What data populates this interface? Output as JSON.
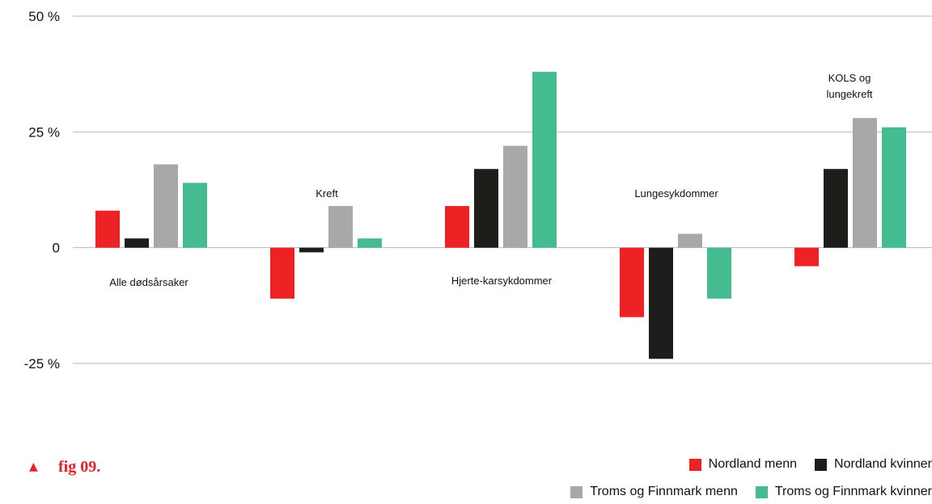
{
  "colors": {
    "nordland_menn": "#ee2224",
    "nordland_kvinner": "#1d1d1b",
    "tf_menn": "#a7a8aa",
    "tf_kvinner": "#45bc8f",
    "grid": "#b9b9b9",
    "accent": "#e5222b"
  },
  "caption": {
    "marker": "▲",
    "text": "fig 09."
  },
  "legend": {
    "row1": [
      {
        "label": "Nordland menn",
        "color_key": "nordland_menn"
      },
      {
        "label": "Nordland kvinner",
        "color_key": "nordland_kvinner"
      }
    ],
    "row2": [
      {
        "label": "Troms og Finnmark menn",
        "color_key": "tf_menn"
      },
      {
        "label": "Troms og Finnmark kvinner",
        "color_key": "tf_kvinner"
      }
    ]
  },
  "chart_data": {
    "type": "bar",
    "title": "",
    "xlabel": "",
    "ylabel": "",
    "ylim": [
      -25,
      50
    ],
    "yticks": [
      {
        "value": 50,
        "label": "50 %"
      },
      {
        "value": 25,
        "label": "25 %"
      },
      {
        "value": 0,
        "label": "0"
      },
      {
        "value": -25,
        "label": "-25 %"
      }
    ],
    "grid": true,
    "legend_position": "bottom-right",
    "categories": [
      "Alle dødsårsaker",
      "Kreft",
      "Hjerte-karsykdommer",
      "Lungesykdommer",
      "KOLS og lungekreft"
    ],
    "series": [
      {
        "name": "Nordland menn",
        "color_key": "nordland_menn",
        "values": [
          8,
          -11,
          9,
          -15,
          -4
        ]
      },
      {
        "name": "Nordland kvinner",
        "color_key": "nordland_kvinner",
        "values": [
          2,
          -1,
          17,
          -24,
          17
        ]
      },
      {
        "name": "Troms og Finnmark menn",
        "color_key": "tf_menn",
        "values": [
          18,
          9,
          22,
          3,
          28
        ]
      },
      {
        "name": "Troms og Finnmark kvinner",
        "color_key": "tf_kvinner",
        "values": [
          14,
          2,
          38,
          -11,
          26
        ]
      }
    ]
  }
}
